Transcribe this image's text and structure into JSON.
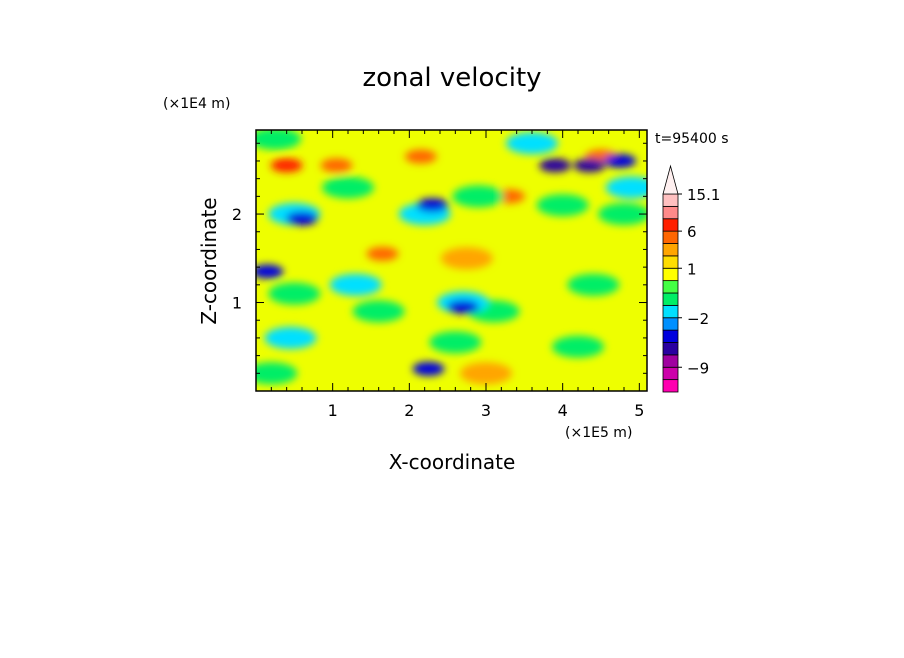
{
  "chart_data": {
    "type": "heatmap",
    "title": "zonal velocity",
    "xlabel": "X-coordinate",
    "ylabel": "Z-coordinate",
    "x_scale_note": "(×1E5 m)",
    "y_scale_note": "(×1E4 m)",
    "time_label": "t=95400 s",
    "xlim": [
      0,
      5.1
    ],
    "ylim": [
      0,
      2.95
    ],
    "x_ticks": [
      1,
      2,
      3,
      4,
      5
    ],
    "y_ticks": [
      1,
      2
    ],
    "x_tick_labels": [
      "1",
      "2",
      "3",
      "4",
      "5"
    ],
    "y_tick_labels": [
      "1",
      "2"
    ],
    "colorbar": {
      "extend": "max",
      "levels": [
        -13,
        -11,
        -9,
        -7,
        -5,
        -3.5,
        -2,
        -1,
        0,
        0.5,
        1,
        2,
        4,
        6,
        8,
        10,
        15.1
      ],
      "labeled_levels": [
        15.1,
        6,
        1,
        -2,
        -9
      ],
      "colors": [
        "#ff00b0",
        "#cc00aa",
        "#a000a0",
        "#2a00a0",
        "#0000dd",
        "#0090ff",
        "#00e0ff",
        "#00ee66",
        "#44ff44",
        "#ffff00",
        "#ffdd00",
        "#ffa500",
        "#ff6600",
        "#ff2000",
        "#ff8a8a",
        "#ffc0c0"
      ],
      "top_triangle_color": "#fff0f0"
    },
    "background_color": "#eeff00",
    "features": [
      {
        "x": 0.4,
        "z": 2.55,
        "value": 6
      },
      {
        "x": 1.05,
        "z": 2.55,
        "value": 4
      },
      {
        "x": 2.15,
        "z": 2.65,
        "value": 4
      },
      {
        "x": 4.5,
        "z": 2.65,
        "value": 5
      },
      {
        "x": 3.3,
        "z": 2.2,
        "value": 4
      },
      {
        "x": 1.65,
        "z": 1.55,
        "value": 4
      },
      {
        "x": 2.75,
        "z": 1.5,
        "value": 3
      },
      {
        "x": 3.0,
        "z": 0.2,
        "value": 2
      },
      {
        "x": 0.25,
        "z": 2.85,
        "value": -1
      },
      {
        "x": 1.2,
        "z": 2.3,
        "value": -1
      },
      {
        "x": 2.9,
        "z": 2.2,
        "value": -1
      },
      {
        "x": 4.0,
        "z": 2.1,
        "value": -1
      },
      {
        "x": 4.8,
        "z": 2.0,
        "value": -1
      },
      {
        "x": 0.5,
        "z": 1.1,
        "value": -1
      },
      {
        "x": 1.6,
        "z": 0.9,
        "value": -1
      },
      {
        "x": 3.1,
        "z": 0.9,
        "value": -1
      },
      {
        "x": 4.4,
        "z": 1.2,
        "value": -1
      },
      {
        "x": 2.6,
        "z": 0.55,
        "value": -1
      },
      {
        "x": 4.2,
        "z": 0.5,
        "value": -1
      },
      {
        "x": 0.2,
        "z": 0.2,
        "value": -1
      },
      {
        "x": 0.5,
        "z": 2.0,
        "value": -2
      },
      {
        "x": 2.2,
        "z": 2.0,
        "value": -2
      },
      {
        "x": 1.3,
        "z": 1.2,
        "value": -2
      },
      {
        "x": 2.7,
        "z": 1.0,
        "value": -2
      },
      {
        "x": 4.9,
        "z": 2.3,
        "value": -2
      },
      {
        "x": 3.6,
        "z": 2.8,
        "value": -2
      },
      {
        "x": 0.45,
        "z": 0.6,
        "value": -2
      },
      {
        "x": 3.9,
        "z": 2.55,
        "value": -6
      },
      {
        "x": 4.35,
        "z": 2.55,
        "value": -6
      },
      {
        "x": 4.75,
        "z": 2.6,
        "value": -5
      },
      {
        "x": 0.6,
        "z": 1.95,
        "value": -5
      },
      {
        "x": 2.3,
        "z": 2.1,
        "value": -4
      },
      {
        "x": 2.25,
        "z": 0.25,
        "value": -4
      },
      {
        "x": 0.15,
        "z": 1.35,
        "value": -4
      },
      {
        "x": 2.7,
        "z": 0.95,
        "value": -4
      }
    ]
  }
}
